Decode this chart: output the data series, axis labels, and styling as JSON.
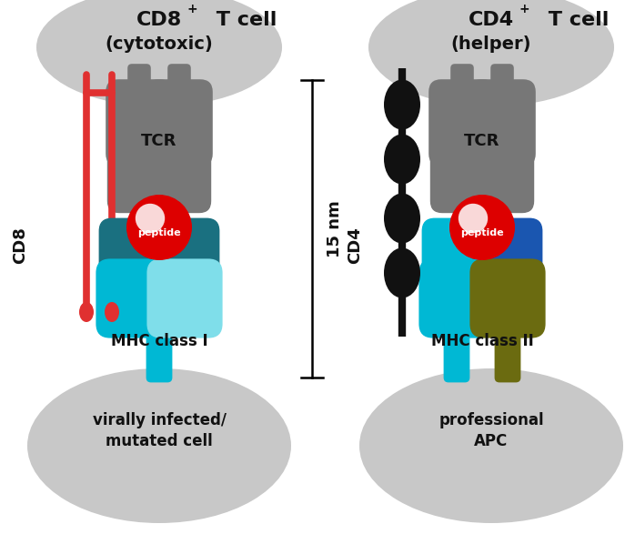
{
  "bg_color": "#ffffff",
  "cell_color": "#c8c8c8",
  "tcr_color": "#777777",
  "cd8_color": "#e03030",
  "cd4_color": "#111111",
  "mhc1_dark": "#1a7080",
  "mhc1_light": "#00b8d4",
  "mhc1_lightest": "#7fdeea",
  "mhc2_blue": "#1a56b0",
  "mhc2_cyan": "#00b8d4",
  "mhc2_olive": "#6b6b10",
  "peptide_red": "#dd0000",
  "peptide_white": "#ffffff",
  "text_color": "#111111",
  "left_cell_title": "CD8",
  "left_cell_sup": "+",
  "left_cell_rest": " T cell",
  "left_cell_sub": "(cytotoxic)",
  "left_tcr_label": "TCR",
  "left_cd_label": "CD8",
  "left_mhc_label": "MHC class I",
  "left_bottom1": "virally infected/",
  "left_bottom2": "mutated cell",
  "right_cell_title": "CD4",
  "right_cell_sup": "+",
  "right_cell_rest": " T cell",
  "right_cell_sub": "(helper)",
  "right_tcr_label": "TCR",
  "right_cd_label": "CD4",
  "right_mhc_label": "MHC class II",
  "right_bottom1": "professional",
  "right_bottom2": "APC",
  "scale_label": "15 nm"
}
